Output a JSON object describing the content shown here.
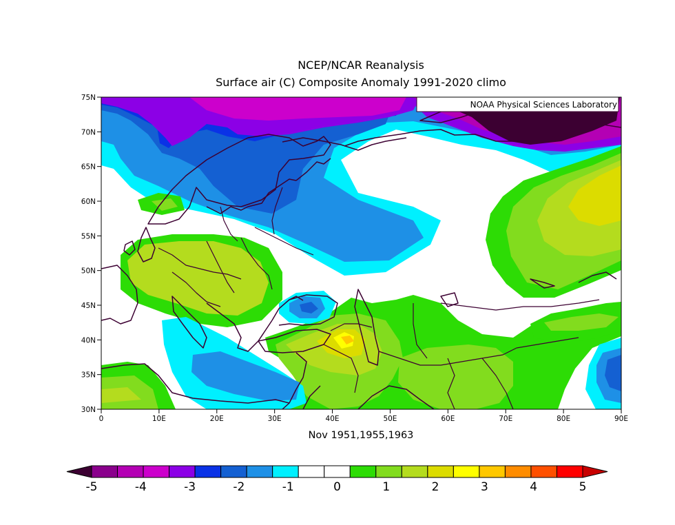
{
  "title": "NCEP/NCAR Reanalysis",
  "subtitle": "Surface air (C) Composite Anomaly 1991-2020 climo",
  "credit": "NOAA Physical Sciences Laboratory",
  "period_label": "Nov 1951,1955,1963",
  "map": {
    "lon_range": [
      0,
      90
    ],
    "lat_range": [
      30,
      75
    ],
    "lon_ticks": [
      "0",
      "10E",
      "20E",
      "30E",
      "40E",
      "50E",
      "60E",
      "70E",
      "80E",
      "90E"
    ],
    "lat_ticks": [
      "30N",
      "35N",
      "40N",
      "45N",
      "50N",
      "55N",
      "60N",
      "65N",
      "70N",
      "75N"
    ]
  },
  "colorbar": {
    "labels": [
      "-5",
      "-4",
      "-3",
      "-2",
      "-1",
      "0",
      "1",
      "2",
      "3",
      "4",
      "5"
    ],
    "colors": [
      "#3c0032",
      "#8a008c",
      "#b400b4",
      "#cc00cc",
      "#8c00e6",
      "#0a32e6",
      "#1460d2",
      "#1e90e6",
      "#00f0ff",
      "#ffffff",
      "#ffffff",
      "#2ddc05",
      "#82dc1e",
      "#b4dc1e",
      "#dcdc00",
      "#ffff00",
      "#ffc800",
      "#ff8c00",
      "#ff5000",
      "#ff0000",
      "#c80000"
    ]
  }
}
